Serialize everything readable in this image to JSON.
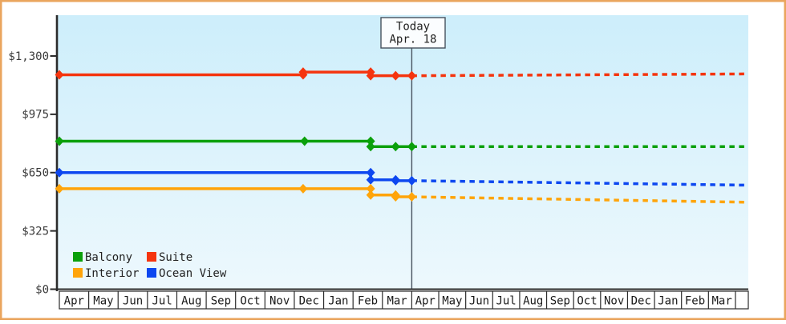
{
  "frame": {
    "border_color": "#eaa55e",
    "background": "#ffffff"
  },
  "chart_data": {
    "type": "line",
    "title": "",
    "description": "Cruise cabin price history by month with projected (dotted) prices after today",
    "y_axis": {
      "tick_labels": [
        "$0",
        "$325",
        "$650",
        "$975",
        "$1,300"
      ],
      "tick_values": [
        0,
        325,
        650,
        975,
        1300
      ],
      "min": 0,
      "max": 1300
    },
    "x_axis": {
      "month_labels": [
        "Apr",
        "May",
        "Jun",
        "Jul",
        "Aug",
        "Sep",
        "Oct",
        "Nov",
        "Dec",
        "Jan",
        "Feb",
        "Mar",
        "Apr",
        "May",
        "Jun",
        "Jul",
        "Aug",
        "Sep",
        "Oct",
        "Nov",
        "Dec",
        "Jan",
        "Feb",
        "Mar"
      ]
    },
    "today": {
      "label_line1": "Today",
      "label_line2": "Apr. 18",
      "month_index": 12
    },
    "series": [
      {
        "name": "Suite",
        "color": "#f5340e",
        "solid_points": [
          [
            0,
            1195
          ],
          [
            8.3,
            1195
          ],
          [
            8.3,
            1210
          ],
          [
            10.6,
            1210
          ],
          [
            10.6,
            1190
          ],
          [
            11.45,
            1190
          ],
          [
            12,
            1190
          ]
        ],
        "projected_points": [
          [
            12,
            1190
          ],
          [
            24.35,
            1200
          ]
        ]
      },
      {
        "name": "Balcony",
        "color": "#0ba00b",
        "solid_points": [
          [
            0,
            825
          ],
          [
            8.35,
            825
          ],
          [
            10.6,
            825
          ],
          [
            10.6,
            795
          ],
          [
            11.45,
            795
          ],
          [
            12,
            795
          ]
        ],
        "projected_points": [
          [
            12,
            795
          ],
          [
            24.35,
            795
          ]
        ]
      },
      {
        "name": "Ocean View",
        "color": "#0d47f0",
        "solid_points": [
          [
            0,
            650
          ],
          [
            10.6,
            650
          ],
          [
            10.6,
            610
          ],
          [
            11.45,
            610
          ],
          [
            11.45,
            605
          ],
          [
            12,
            605
          ]
        ],
        "projected_points": [
          [
            12,
            605
          ],
          [
            24.35,
            580
          ]
        ]
      },
      {
        "name": "Interior",
        "color": "#ffa40a",
        "solid_points": [
          [
            0,
            560
          ],
          [
            8.3,
            560
          ],
          [
            10.6,
            560
          ],
          [
            10.6,
            525
          ],
          [
            11.45,
            525
          ],
          [
            11.45,
            515
          ],
          [
            12,
            515
          ]
        ],
        "projected_points": [
          [
            12,
            515
          ],
          [
            24.35,
            485
          ]
        ]
      }
    ],
    "legend": {
      "rows": [
        [
          {
            "label": "Balcony",
            "color": "#0ba00b"
          },
          {
            "label": "Suite",
            "color": "#f5340e"
          }
        ],
        [
          {
            "label": "Interior",
            "color": "#ffa40a"
          },
          {
            "label": "Ocean View",
            "color": "#0d47f0"
          }
        ]
      ]
    },
    "colors": {
      "plot_bg_top": "#cdeefb",
      "plot_bg_bottom": "#edf8fd",
      "axis": "#2b2b2b",
      "label_text": "#3a3a3a",
      "month_text": "#1a1a1a",
      "today_line": "#47525e",
      "today_box_fill": "#fbfdff",
      "today_text": "#222222",
      "legend_text": "#222222",
      "month_cell_fill": "#ffffff"
    }
  }
}
